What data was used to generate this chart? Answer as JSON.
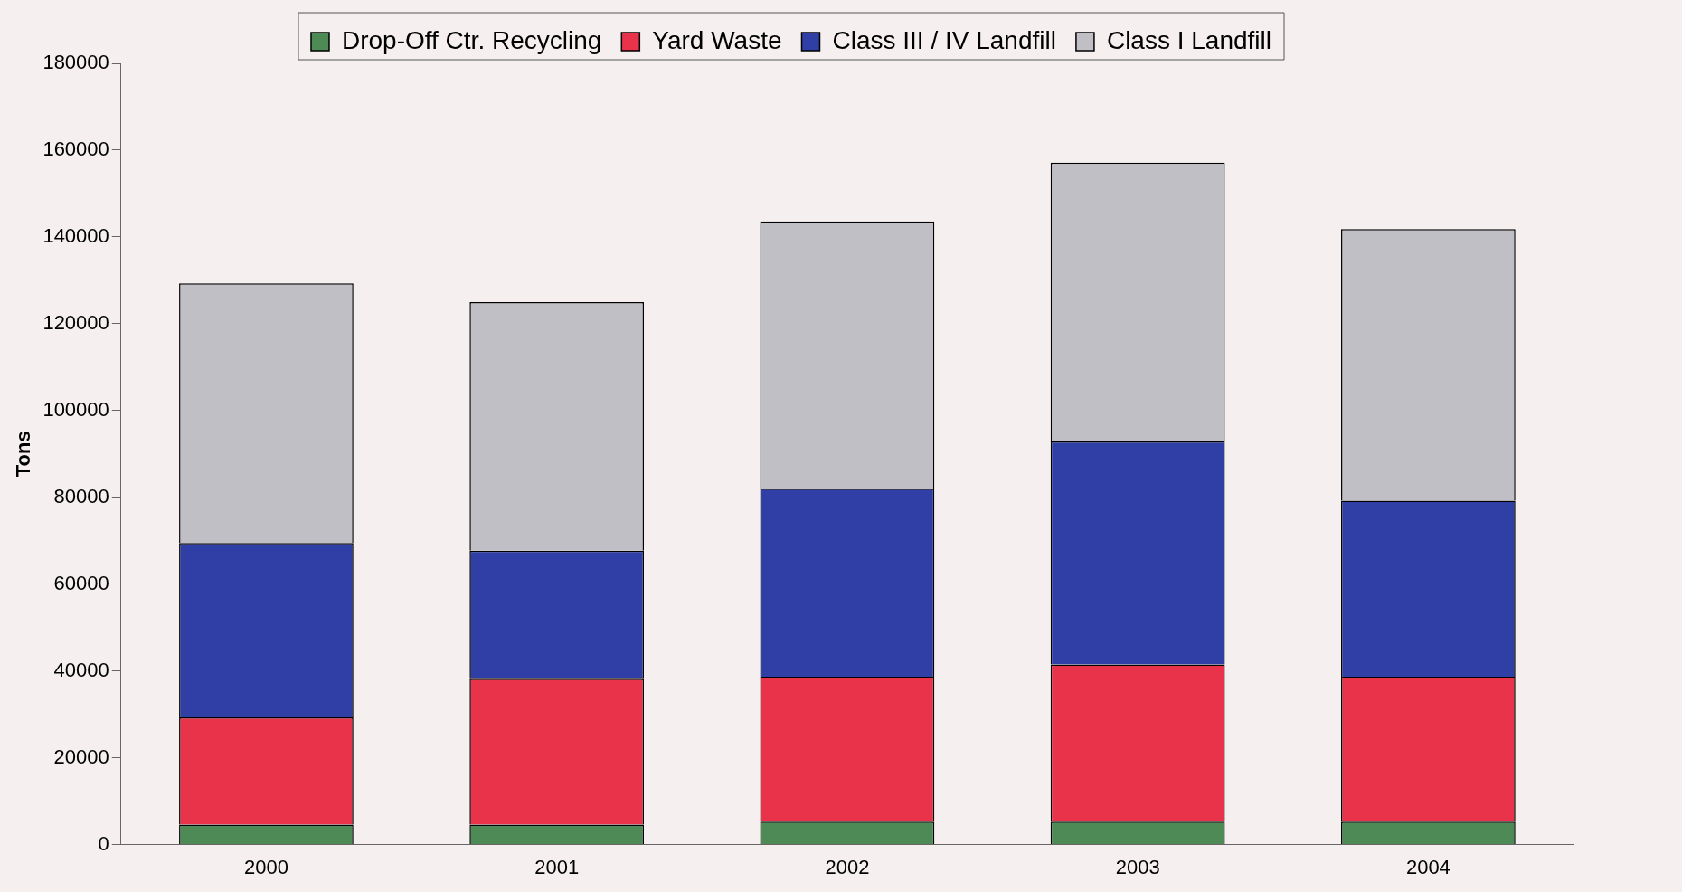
{
  "chart_data": {
    "type": "bar",
    "stacked": true,
    "ylabel": "Tons",
    "categories": [
      "2000",
      "2001",
      "2002",
      "2003",
      "2004"
    ],
    "series": [
      {
        "name": "Drop-Off Ctr. Recycling",
        "color": "#4e8a56",
        "values": [
          4600,
          4600,
          5300,
          5300,
          5300
        ]
      },
      {
        "name": "Yard Waste",
        "color": "#e8334a",
        "values": [
          24700,
          33600,
          33400,
          36200,
          33400
        ]
      },
      {
        "name": "Class III / IV Landfill",
        "color": "#2f3fa6",
        "values": [
          40200,
          29500,
          43300,
          51400,
          40500
        ]
      },
      {
        "name": "Class I Landfill",
        "color": "#c0bfc6",
        "values": [
          59800,
          57300,
          61600,
          64200,
          62600
        ]
      }
    ],
    "ylim": [
      0,
      180000
    ],
    "yticks": [
      0,
      20000,
      40000,
      60000,
      80000,
      100000,
      120000,
      140000,
      160000,
      180000
    ],
    "grid": false,
    "legend": "top"
  }
}
